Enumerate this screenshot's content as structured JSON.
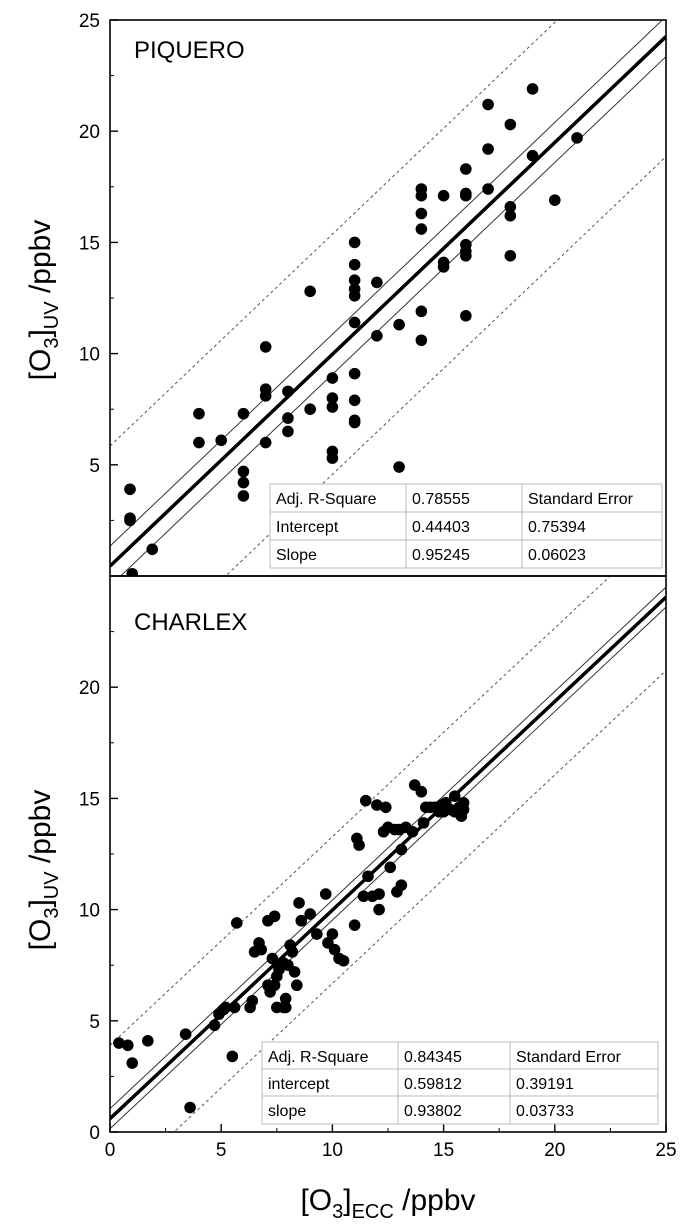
{
  "chart_data": [
    {
      "type": "scatter",
      "title": "PIQUERO",
      "xlabel": "",
      "ylabel_main": "[O",
      "ylabel_sub3": "3",
      "ylabel_close": "]",
      "ylabel_subUV": "UV",
      "ylabel_tail": " /ppbv",
      "xlim": [
        0,
        25
      ],
      "ylim": [
        0,
        25
      ],
      "yticks": [
        5,
        10,
        15,
        20,
        25
      ],
      "xticks": [],
      "fit": {
        "intercept": 0.44403,
        "slope": 0.95245,
        "conf_band": 0.9,
        "pred_band": 5.4
      },
      "points": [
        [
          0.9,
          3.9
        ],
        [
          0.9,
          2.6
        ],
        [
          0.9,
          2.5
        ],
        [
          1.9,
          1.2
        ],
        [
          1.0,
          0.1
        ],
        [
          4.0,
          7.3
        ],
        [
          4.0,
          6.0
        ],
        [
          5.0,
          6.1
        ],
        [
          6.0,
          7.3
        ],
        [
          6.0,
          4.7
        ],
        [
          6.0,
          4.2
        ],
        [
          6.0,
          3.6
        ],
        [
          7.0,
          10.3
        ],
        [
          7.0,
          8.4
        ],
        [
          7.0,
          8.1
        ],
        [
          7.0,
          6.0
        ],
        [
          8.0,
          8.3
        ],
        [
          8.0,
          7.1
        ],
        [
          8.0,
          6.5
        ],
        [
          9.0,
          12.8
        ],
        [
          9.0,
          7.5
        ],
        [
          10.0,
          8.9
        ],
        [
          10.0,
          8.0
        ],
        [
          10.0,
          7.6
        ],
        [
          10.0,
          5.6
        ],
        [
          10.0,
          5.3
        ],
        [
          11.0,
          15.0
        ],
        [
          11.0,
          14.0
        ],
        [
          11.0,
          13.3
        ],
        [
          11.0,
          12.9
        ],
        [
          11.0,
          12.6
        ],
        [
          11.0,
          11.4
        ],
        [
          11.0,
          9.1
        ],
        [
          11.0,
          7.9
        ],
        [
          11.0,
          7.0
        ],
        [
          11.0,
          6.9
        ],
        [
          12.0,
          13.2
        ],
        [
          12.0,
          10.8
        ],
        [
          13.0,
          11.3
        ],
        [
          13.0,
          4.9
        ],
        [
          14.0,
          17.4
        ],
        [
          14.0,
          17.1
        ],
        [
          14.0,
          16.3
        ],
        [
          14.0,
          15.6
        ],
        [
          14.0,
          11.9
        ],
        [
          14.0,
          10.6
        ],
        [
          15.0,
          17.1
        ],
        [
          15.0,
          14.1
        ],
        [
          15.0,
          13.9
        ],
        [
          16.0,
          18.3
        ],
        [
          16.0,
          17.2
        ],
        [
          16.0,
          17.1
        ],
        [
          16.0,
          14.9
        ],
        [
          16.0,
          14.6
        ],
        [
          16.0,
          14.4
        ],
        [
          16.0,
          11.7
        ],
        [
          17.0,
          21.2
        ],
        [
          17.0,
          19.2
        ],
        [
          17.0,
          17.4
        ],
        [
          18.0,
          20.3
        ],
        [
          18.0,
          16.6
        ],
        [
          18.0,
          16.2
        ],
        [
          18.0,
          14.4
        ],
        [
          19.0,
          21.9
        ],
        [
          19.0,
          18.9
        ],
        [
          20.0,
          16.9
        ],
        [
          21.0,
          19.7
        ]
      ],
      "stats_table": [
        [
          "Adj. R-Square",
          "0.78555",
          "Standard Error"
        ],
        [
          "Intercept",
          "0.44403",
          "0.75394"
        ],
        [
          "Slope",
          "0.95245",
          "0.06023"
        ]
      ]
    },
    {
      "type": "scatter",
      "title": "CHARLEX",
      "xlabel_main": "[O",
      "xlabel_sub3": "3",
      "xlabel_close": "]",
      "xlabel_subECC": "ECC",
      "xlabel_tail": " /ppbv",
      "ylabel_main": "[O",
      "ylabel_sub3": "3",
      "ylabel_close": "]",
      "ylabel_subUV": "UV",
      "ylabel_tail": " /ppbv",
      "xlim": [
        0,
        25
      ],
      "ylim": [
        0,
        25
      ],
      "yticks": [
        0,
        5,
        10,
        15,
        20
      ],
      "xticks": [
        0,
        5,
        10,
        15,
        20,
        25
      ],
      "fit": {
        "intercept": 0.59812,
        "slope": 0.93802,
        "conf_band": 0.45,
        "pred_band": 3.3
      },
      "points": [
        [
          0.4,
          4.0
        ],
        [
          0.8,
          3.9
        ],
        [
          1.0,
          3.1
        ],
        [
          1.7,
          4.1
        ],
        [
          3.4,
          4.4
        ],
        [
          3.6,
          1.1
        ],
        [
          4.7,
          4.8
        ],
        [
          4.9,
          5.3
        ],
        [
          5.1,
          5.5
        ],
        [
          5.2,
          5.6
        ],
        [
          5.5,
          3.4
        ],
        [
          5.6,
          5.6
        ],
        [
          5.7,
          9.4
        ],
        [
          6.3,
          5.6
        ],
        [
          6.4,
          5.9
        ],
        [
          6.5,
          8.1
        ],
        [
          6.7,
          8.5
        ],
        [
          6.8,
          8.2
        ],
        [
          7.1,
          9.5
        ],
        [
          7.1,
          6.6
        ],
        [
          7.2,
          6.3
        ],
        [
          7.3,
          7.8
        ],
        [
          7.4,
          9.7
        ],
        [
          7.4,
          6.6
        ],
        [
          7.5,
          5.6
        ],
        [
          7.5,
          7.0
        ],
        [
          7.6,
          7.3
        ],
        [
          7.8,
          7.6
        ],
        [
          7.8,
          5.6
        ],
        [
          7.9,
          6.0
        ],
        [
          7.9,
          5.6
        ],
        [
          8.0,
          7.5
        ],
        [
          8.1,
          8.4
        ],
        [
          8.2,
          8.1
        ],
        [
          8.3,
          7.2
        ],
        [
          8.4,
          6.6
        ],
        [
          8.5,
          10.3
        ],
        [
          8.6,
          9.5
        ],
        [
          9.0,
          9.8
        ],
        [
          9.3,
          8.9
        ],
        [
          9.7,
          10.7
        ],
        [
          9.8,
          8.5
        ],
        [
          10.0,
          8.9
        ],
        [
          10.1,
          8.2
        ],
        [
          10.3,
          7.8
        ],
        [
          10.5,
          7.7
        ],
        [
          11.0,
          9.3
        ],
        [
          11.1,
          13.2
        ],
        [
          11.2,
          12.9
        ],
        [
          11.4,
          10.6
        ],
        [
          11.5,
          14.9
        ],
        [
          11.6,
          11.5
        ],
        [
          11.8,
          10.6
        ],
        [
          12.0,
          14.7
        ],
        [
          12.1,
          10.7
        ],
        [
          12.1,
          10.0
        ],
        [
          12.3,
          13.5
        ],
        [
          12.4,
          14.6
        ],
        [
          12.5,
          13.7
        ],
        [
          12.6,
          11.9
        ],
        [
          12.8,
          13.6
        ],
        [
          12.9,
          10.8
        ],
        [
          13.0,
          13.6
        ],
        [
          13.1,
          12.7
        ],
        [
          13.1,
          11.1
        ],
        [
          13.3,
          13.7
        ],
        [
          13.6,
          13.5
        ],
        [
          13.7,
          15.6
        ],
        [
          14.0,
          15.3
        ],
        [
          14.1,
          13.9
        ],
        [
          14.2,
          14.6
        ],
        [
          14.4,
          14.6
        ],
        [
          14.6,
          14.6
        ],
        [
          14.8,
          14.4
        ],
        [
          14.9,
          14.7
        ],
        [
          15.0,
          14.4
        ],
        [
          15.1,
          14.8
        ],
        [
          15.3,
          14.5
        ],
        [
          15.5,
          14.4
        ],
        [
          15.5,
          15.1
        ],
        [
          15.7,
          14.6
        ],
        [
          15.8,
          14.2
        ],
        [
          15.9,
          14.8
        ],
        [
          15.9,
          14.5
        ]
      ],
      "stats_table": [
        [
          "Adj. R-Square",
          "0.84345",
          "Standard Error"
        ],
        [
          "intercept",
          "0.59812",
          "0.39191"
        ],
        [
          "slope",
          "0.93802",
          "0.03733"
        ]
      ]
    }
  ]
}
